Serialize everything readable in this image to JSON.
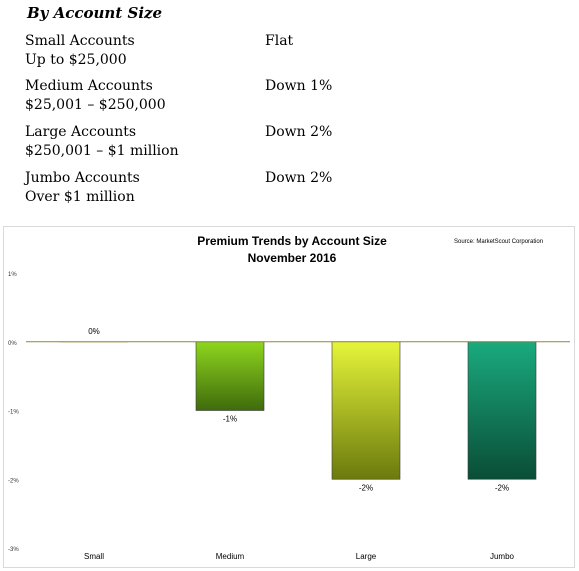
{
  "section": {
    "heading": "By Account Size"
  },
  "rows": [
    {
      "name": "Small Accounts",
      "range": "Up to $25,000",
      "trend": "Flat"
    },
    {
      "name": "Medium Accounts",
      "range": "$25,001 – $250,000",
      "trend": "Down 1%"
    },
    {
      "name": "Large Accounts",
      "range": "$250,001 – $1 million",
      "trend": "Down 2%"
    },
    {
      "name": "Jumbo Accounts",
      "range": "Over $1 million",
      "trend": "Down 2%"
    }
  ],
  "chart_data": {
    "type": "bar",
    "title": "Premium Trends by Account Size",
    "subtitle": "November 2016",
    "source": "Source: MarketScout Corporation",
    "categories": [
      "Small",
      "Medium",
      "Large",
      "Jumbo"
    ],
    "values": [
      0,
      -1,
      -2,
      -2
    ],
    "data_labels": [
      "0%",
      "-1%",
      "-2%",
      "-2%"
    ],
    "yticks": [
      1,
      0,
      -1,
      -2,
      -3
    ],
    "ytick_labels": [
      "1%",
      "0%",
      "-1%",
      "-2%",
      "-3%"
    ],
    "ylim": [
      -3,
      1
    ],
    "grid": false,
    "legend": "none",
    "colors": {
      "zero_line": "#8a8a3a",
      "bar_medium": [
        "#8ed61e",
        "#3f6b0c"
      ],
      "bar_large": [
        "#e6f53a",
        "#6b7a0c"
      ],
      "bar_jumbo": [
        "#1aaa7e",
        "#0a4d36"
      ],
      "bar_small": "#f0e0c8"
    }
  }
}
